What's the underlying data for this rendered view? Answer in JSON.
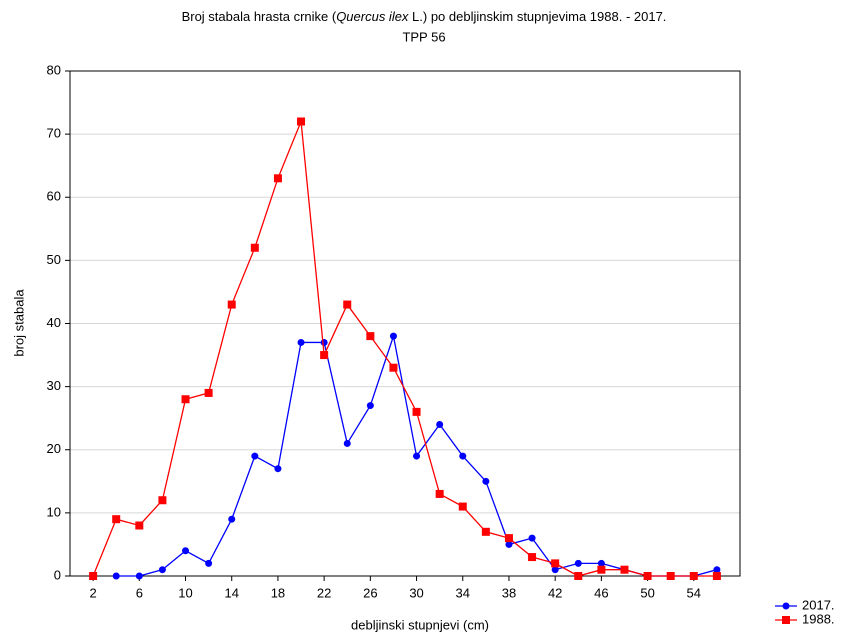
{
  "chart_data": {
    "type": "line",
    "title_parts": [
      "Broj stabala hrasta crnike (",
      "Quercus ilex",
      " L.) po debljinskim stupnjevima 1988. - 2017."
    ],
    "subtitle": "TPP 56",
    "x_label": "debljinski stupnjevi (cm)",
    "y_label": "broj stabala",
    "x": [
      2,
      4,
      6,
      8,
      10,
      12,
      14,
      16,
      18,
      20,
      22,
      24,
      26,
      28,
      30,
      32,
      34,
      36,
      38,
      40,
      42,
      44,
      46,
      48,
      50,
      52,
      54,
      56
    ],
    "series": [
      {
        "name": "2017.",
        "color": "#0000ff",
        "marker": "circle",
        "values": [
          null,
          0,
          0,
          1,
          4,
          2,
          9,
          19,
          17,
          37,
          37,
          21,
          27,
          38,
          19,
          24,
          19,
          15,
          5,
          6,
          1,
          2,
          2,
          1,
          0,
          0,
          0,
          1
        ]
      },
      {
        "name": "1988.",
        "color": "#ff0000",
        "marker": "square",
        "values": [
          0,
          9,
          8,
          12,
          28,
          29,
          43,
          52,
          63,
          72,
          35,
          43,
          38,
          33,
          26,
          13,
          11,
          7,
          6,
          3,
          2,
          0,
          1,
          1,
          0,
          0,
          0,
          0
        ]
      }
    ],
    "xlim": [
      0,
      58
    ],
    "xticks": [
      2,
      6,
      10,
      14,
      18,
      22,
      26,
      30,
      34,
      38,
      42,
      46,
      50,
      54
    ],
    "ylim": [
      0,
      80
    ],
    "yticks": [
      0,
      10,
      20,
      30,
      40,
      50,
      60,
      70,
      80
    ],
    "grid": true,
    "legend": "bottom-right"
  }
}
